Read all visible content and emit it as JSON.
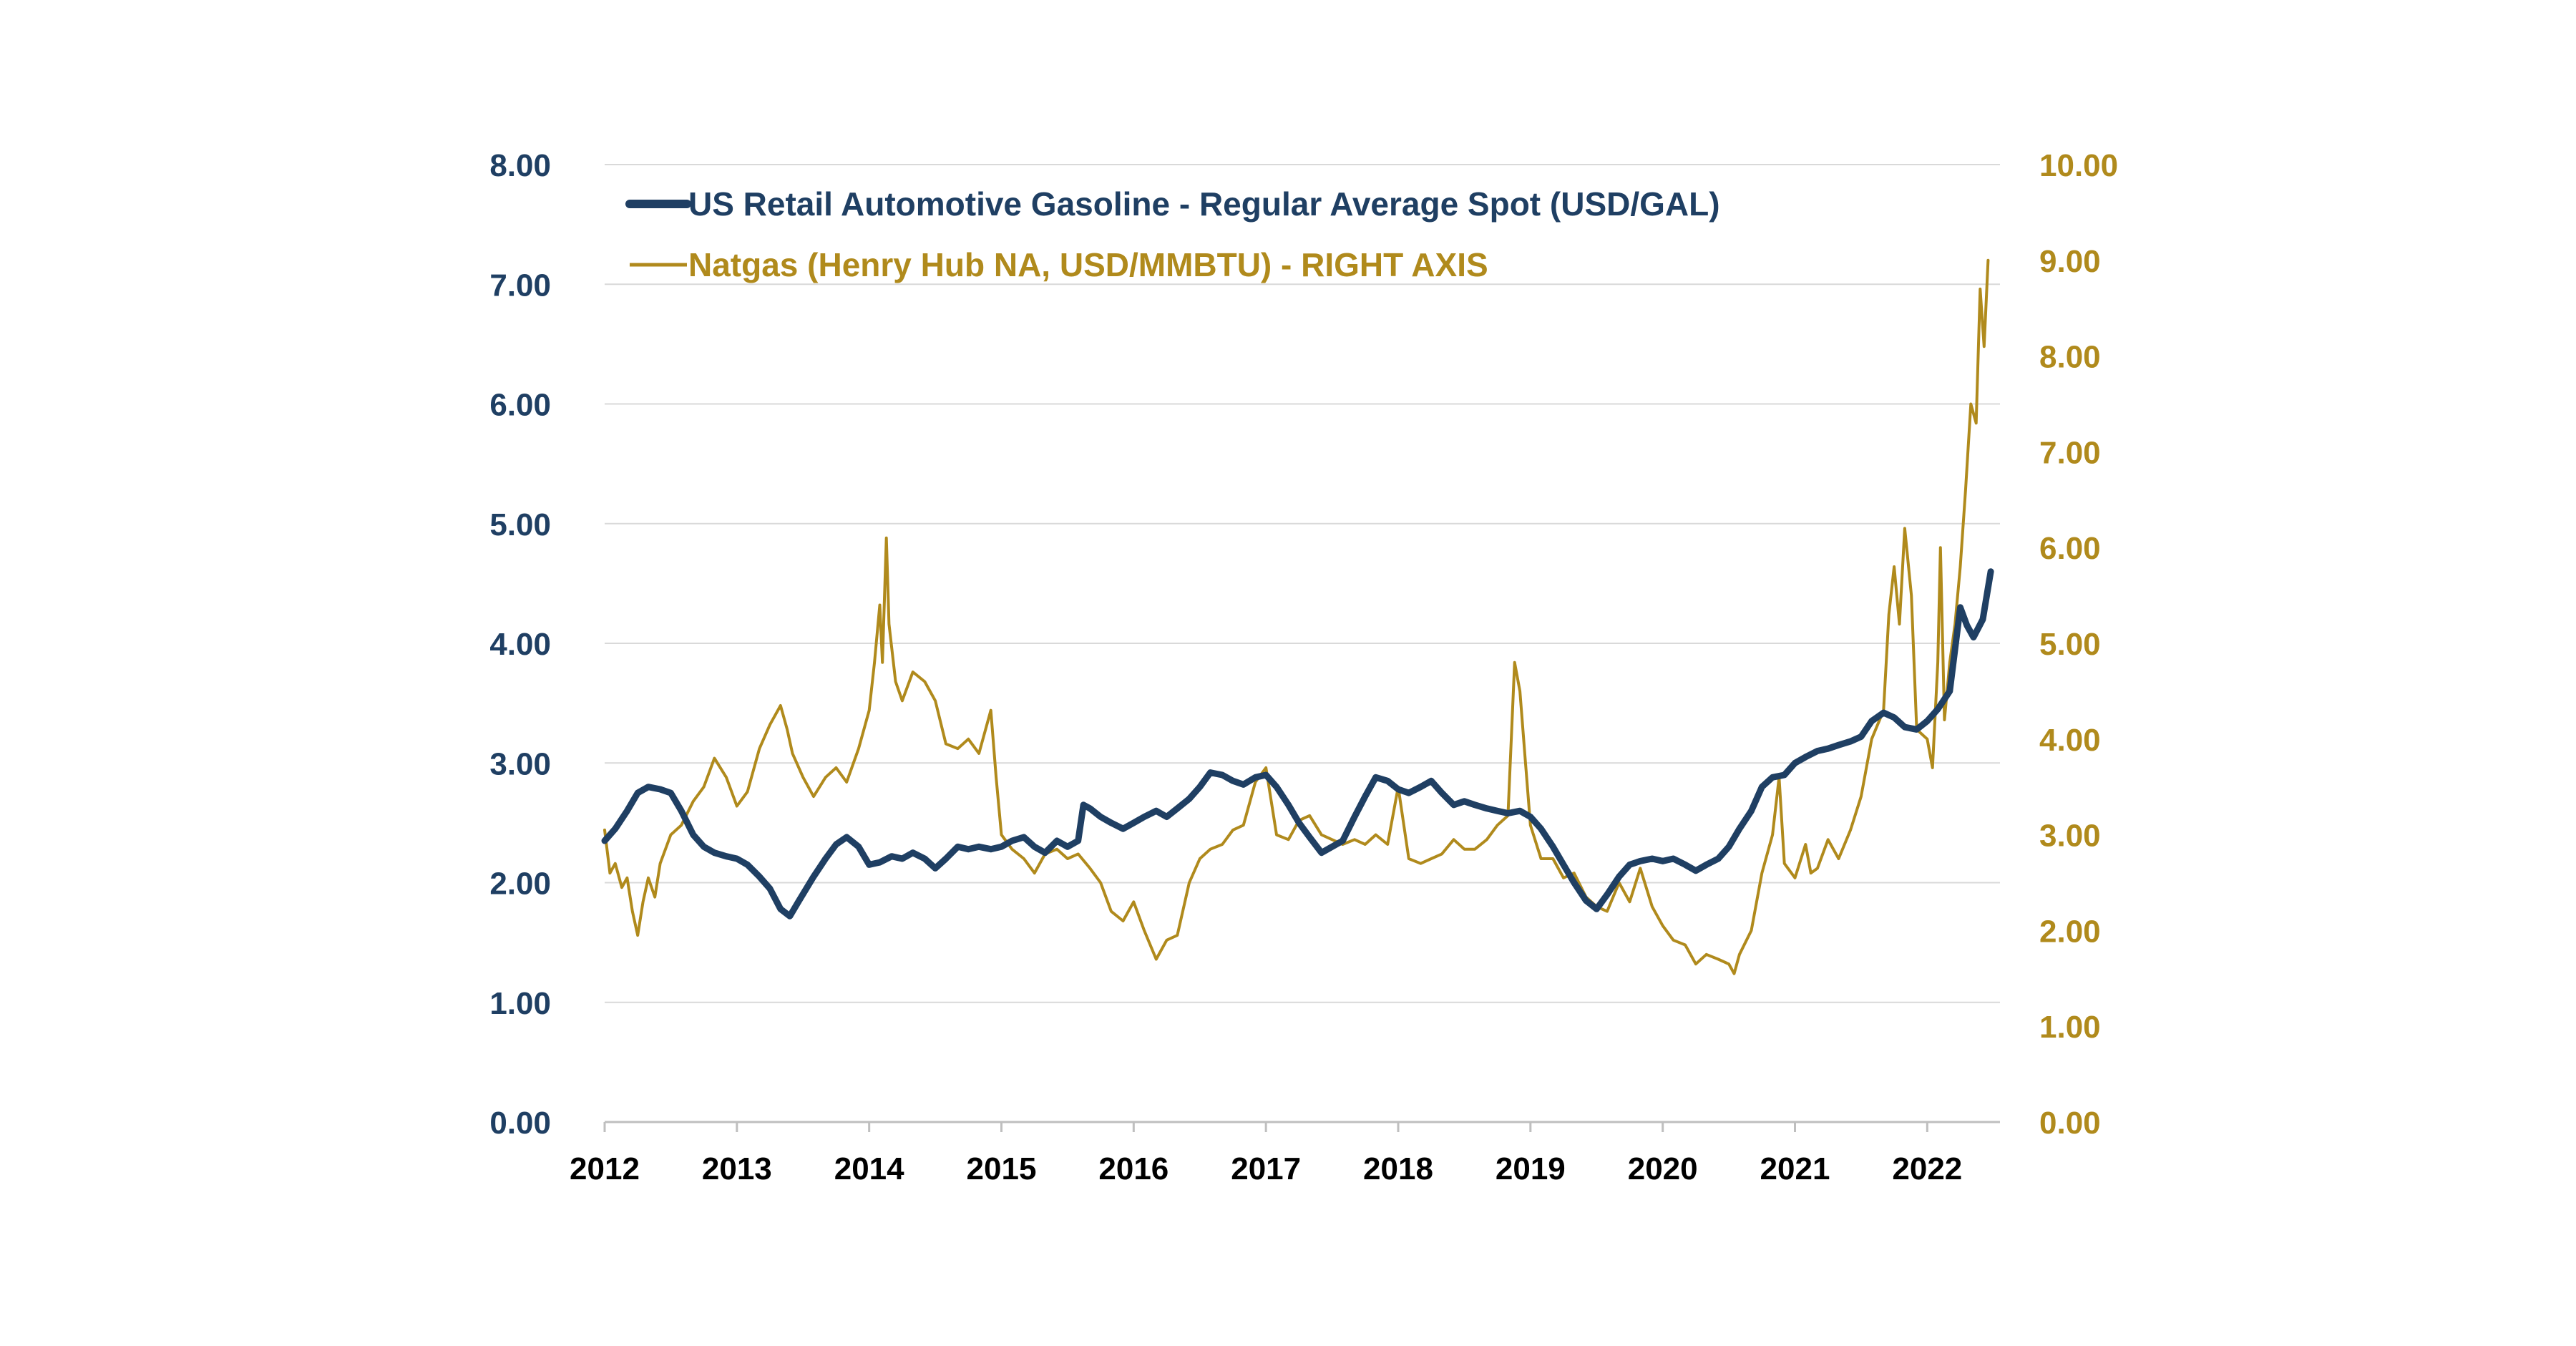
{
  "chart_data": {
    "type": "line",
    "title": "",
    "xlabel": "",
    "ylabel_left": "",
    "ylabel_right": "",
    "x_range": [
      2012,
      2022.55
    ],
    "y_left_range": [
      0,
      8
    ],
    "y_right_range": [
      0,
      10
    ],
    "grid": "horizontal",
    "legend_position": "top-left",
    "x_ticks": [
      "2012",
      "2013",
      "2014",
      "2015",
      "2016",
      "2017",
      "2018",
      "2019",
      "2020",
      "2021",
      "2022"
    ],
    "y_left_ticks": [
      "0.00",
      "1.00",
      "2.00",
      "3.00",
      "4.00",
      "5.00",
      "6.00",
      "7.00",
      "8.00"
    ],
    "y_right_ticks": [
      "0.00",
      "1.00",
      "2.00",
      "3.00",
      "4.00",
      "5.00",
      "6.00",
      "7.00",
      "8.00",
      "9.00",
      "10.00"
    ],
    "series": [
      {
        "name": "US Retail Automotive Gasoline - Regular Average Spot (USD/GAL)",
        "axis": "left",
        "color": "#1f3f63",
        "points": [
          [
            2012.0,
            2.35
          ],
          [
            2012.08,
            2.45
          ],
          [
            2012.17,
            2.6
          ],
          [
            2012.25,
            2.75
          ],
          [
            2012.33,
            2.8
          ],
          [
            2012.42,
            2.78
          ],
          [
            2012.5,
            2.75
          ],
          [
            2012.58,
            2.6
          ],
          [
            2012.67,
            2.4
          ],
          [
            2012.75,
            2.3
          ],
          [
            2012.83,
            2.25
          ],
          [
            2012.92,
            2.22
          ],
          [
            2013.0,
            2.2
          ],
          [
            2013.08,
            2.15
          ],
          [
            2013.17,
            2.05
          ],
          [
            2013.25,
            1.95
          ],
          [
            2013.33,
            1.78
          ],
          [
            2013.4,
            1.72
          ],
          [
            2013.47,
            1.85
          ],
          [
            2013.58,
            2.05
          ],
          [
            2013.67,
            2.2
          ],
          [
            2013.75,
            2.32
          ],
          [
            2013.83,
            2.38
          ],
          [
            2013.92,
            2.3
          ],
          [
            2014.0,
            2.15
          ],
          [
            2014.08,
            2.17
          ],
          [
            2014.17,
            2.22
          ],
          [
            2014.25,
            2.2
          ],
          [
            2014.33,
            2.25
          ],
          [
            2014.42,
            2.2
          ],
          [
            2014.5,
            2.12
          ],
          [
            2014.58,
            2.2
          ],
          [
            2014.67,
            2.3
          ],
          [
            2014.75,
            2.28
          ],
          [
            2014.83,
            2.3
          ],
          [
            2014.92,
            2.28
          ],
          [
            2015.0,
            2.3
          ],
          [
            2015.08,
            2.35
          ],
          [
            2015.17,
            2.38
          ],
          [
            2015.25,
            2.3
          ],
          [
            2015.33,
            2.25
          ],
          [
            2015.42,
            2.35
          ],
          [
            2015.5,
            2.3
          ],
          [
            2015.58,
            2.35
          ],
          [
            2015.62,
            2.65
          ],
          [
            2015.67,
            2.62
          ],
          [
            2015.75,
            2.55
          ],
          [
            2015.83,
            2.5
          ],
          [
            2015.92,
            2.45
          ],
          [
            2016.0,
            2.5
          ],
          [
            2016.08,
            2.55
          ],
          [
            2016.17,
            2.6
          ],
          [
            2016.25,
            2.55
          ],
          [
            2016.33,
            2.62
          ],
          [
            2016.42,
            2.7
          ],
          [
            2016.5,
            2.8
          ],
          [
            2016.58,
            2.92
          ],
          [
            2016.67,
            2.9
          ],
          [
            2016.75,
            2.85
          ],
          [
            2016.83,
            2.82
          ],
          [
            2016.92,
            2.88
          ],
          [
            2017.0,
            2.9
          ],
          [
            2017.08,
            2.8
          ],
          [
            2017.17,
            2.65
          ],
          [
            2017.25,
            2.5
          ],
          [
            2017.33,
            2.38
          ],
          [
            2017.42,
            2.25
          ],
          [
            2017.5,
            2.3
          ],
          [
            2017.58,
            2.35
          ],
          [
            2017.67,
            2.55
          ],
          [
            2017.75,
            2.72
          ],
          [
            2017.83,
            2.88
          ],
          [
            2017.92,
            2.85
          ],
          [
            2018.0,
            2.78
          ],
          [
            2018.08,
            2.75
          ],
          [
            2018.17,
            2.8
          ],
          [
            2018.25,
            2.85
          ],
          [
            2018.33,
            2.75
          ],
          [
            2018.42,
            2.65
          ],
          [
            2018.5,
            2.68
          ],
          [
            2018.58,
            2.65
          ],
          [
            2018.67,
            2.62
          ],
          [
            2018.75,
            2.6
          ],
          [
            2018.83,
            2.58
          ],
          [
            2018.92,
            2.6
          ],
          [
            2019.0,
            2.55
          ],
          [
            2019.08,
            2.45
          ],
          [
            2019.17,
            2.3
          ],
          [
            2019.25,
            2.15
          ],
          [
            2019.33,
            2.0
          ],
          [
            2019.42,
            1.85
          ],
          [
            2019.5,
            1.78
          ],
          [
            2019.58,
            1.9
          ],
          [
            2019.67,
            2.05
          ],
          [
            2019.75,
            2.15
          ],
          [
            2019.83,
            2.18
          ],
          [
            2019.92,
            2.2
          ],
          [
            2020.0,
            2.18
          ],
          [
            2020.08,
            2.2
          ],
          [
            2020.17,
            2.15
          ],
          [
            2020.25,
            2.1
          ],
          [
            2020.33,
            2.15
          ],
          [
            2020.42,
            2.2
          ],
          [
            2020.5,
            2.3
          ],
          [
            2020.58,
            2.45
          ],
          [
            2020.67,
            2.6
          ],
          [
            2020.75,
            2.8
          ],
          [
            2020.83,
            2.88
          ],
          [
            2020.92,
            2.9
          ],
          [
            2021.0,
            3.0
          ],
          [
            2021.08,
            3.05
          ],
          [
            2021.17,
            3.1
          ],
          [
            2021.25,
            3.12
          ],
          [
            2021.33,
            3.15
          ],
          [
            2021.42,
            3.18
          ],
          [
            2021.5,
            3.22
          ],
          [
            2021.58,
            3.35
          ],
          [
            2021.67,
            3.42
          ],
          [
            2021.75,
            3.38
          ],
          [
            2021.83,
            3.3
          ],
          [
            2021.92,
            3.28
          ],
          [
            2022.0,
            3.35
          ],
          [
            2022.08,
            3.45
          ],
          [
            2022.17,
            3.6
          ],
          [
            2022.25,
            4.3
          ],
          [
            2022.3,
            4.15
          ],
          [
            2022.35,
            4.05
          ],
          [
            2022.42,
            4.2
          ],
          [
            2022.48,
            4.6
          ]
        ]
      },
      {
        "name": "Natgas (Henry Hub NA, USD/MMBTU) - RIGHT AXIS",
        "axis": "right",
        "color": "#b08a1c",
        "points": [
          [
            2012.0,
            3.05
          ],
          [
            2012.04,
            2.6
          ],
          [
            2012.08,
            2.7
          ],
          [
            2012.13,
            2.45
          ],
          [
            2012.17,
            2.55
          ],
          [
            2012.21,
            2.2
          ],
          [
            2012.25,
            1.95
          ],
          [
            2012.29,
            2.3
          ],
          [
            2012.33,
            2.55
          ],
          [
            2012.38,
            2.35
          ],
          [
            2012.42,
            2.7
          ],
          [
            2012.46,
            2.85
          ],
          [
            2012.5,
            3.0
          ],
          [
            2012.58,
            3.1
          ],
          [
            2012.67,
            3.35
          ],
          [
            2012.75,
            3.5
          ],
          [
            2012.83,
            3.8
          ],
          [
            2012.92,
            3.6
          ],
          [
            2013.0,
            3.3
          ],
          [
            2013.08,
            3.45
          ],
          [
            2013.17,
            3.9
          ],
          [
            2013.25,
            4.15
          ],
          [
            2013.33,
            4.35
          ],
          [
            2013.38,
            4.1
          ],
          [
            2013.42,
            3.85
          ],
          [
            2013.5,
            3.6
          ],
          [
            2013.58,
            3.4
          ],
          [
            2013.67,
            3.6
          ],
          [
            2013.75,
            3.7
          ],
          [
            2013.83,
            3.55
          ],
          [
            2013.92,
            3.9
          ],
          [
            2014.0,
            4.3
          ],
          [
            2014.04,
            4.8
          ],
          [
            2014.08,
            5.4
          ],
          [
            2014.1,
            4.8
          ],
          [
            2014.13,
            6.1
          ],
          [
            2014.15,
            5.2
          ],
          [
            2014.2,
            4.6
          ],
          [
            2014.25,
            4.4
          ],
          [
            2014.33,
            4.7
          ],
          [
            2014.42,
            4.6
          ],
          [
            2014.5,
            4.4
          ],
          [
            2014.58,
            3.95
          ],
          [
            2014.67,
            3.9
          ],
          [
            2014.75,
            4.0
          ],
          [
            2014.83,
            3.85
          ],
          [
            2014.92,
            4.3
          ],
          [
            2014.96,
            3.6
          ],
          [
            2015.0,
            3.0
          ],
          [
            2015.08,
            2.85
          ],
          [
            2015.17,
            2.75
          ],
          [
            2015.25,
            2.6
          ],
          [
            2015.33,
            2.8
          ],
          [
            2015.42,
            2.85
          ],
          [
            2015.5,
            2.75
          ],
          [
            2015.58,
            2.8
          ],
          [
            2015.67,
            2.65
          ],
          [
            2015.75,
            2.5
          ],
          [
            2015.83,
            2.2
          ],
          [
            2015.92,
            2.1
          ],
          [
            2016.0,
            2.3
          ],
          [
            2016.08,
            2.0
          ],
          [
            2016.17,
            1.7
          ],
          [
            2016.25,
            1.9
          ],
          [
            2016.33,
            1.95
          ],
          [
            2016.42,
            2.5
          ],
          [
            2016.5,
            2.75
          ],
          [
            2016.58,
            2.85
          ],
          [
            2016.67,
            2.9
          ],
          [
            2016.75,
            3.05
          ],
          [
            2016.83,
            3.1
          ],
          [
            2016.92,
            3.55
          ],
          [
            2017.0,
            3.7
          ],
          [
            2017.08,
            3.0
          ],
          [
            2017.17,
            2.95
          ],
          [
            2017.25,
            3.15
          ],
          [
            2017.33,
            3.2
          ],
          [
            2017.42,
            3.0
          ],
          [
            2017.5,
            2.95
          ],
          [
            2017.58,
            2.9
          ],
          [
            2017.67,
            2.95
          ],
          [
            2017.75,
            2.9
          ],
          [
            2017.83,
            3.0
          ],
          [
            2017.92,
            2.9
          ],
          [
            2018.0,
            3.5
          ],
          [
            2018.08,
            2.75
          ],
          [
            2018.17,
            2.7
          ],
          [
            2018.25,
            2.75
          ],
          [
            2018.33,
            2.8
          ],
          [
            2018.42,
            2.95
          ],
          [
            2018.5,
            2.85
          ],
          [
            2018.58,
            2.85
          ],
          [
            2018.67,
            2.95
          ],
          [
            2018.75,
            3.1
          ],
          [
            2018.83,
            3.2
          ],
          [
            2018.88,
            4.8
          ],
          [
            2018.92,
            4.5
          ],
          [
            2018.96,
            3.8
          ],
          [
            2019.0,
            3.1
          ],
          [
            2019.08,
            2.75
          ],
          [
            2019.17,
            2.75
          ],
          [
            2019.25,
            2.55
          ],
          [
            2019.33,
            2.6
          ],
          [
            2019.42,
            2.35
          ],
          [
            2019.5,
            2.25
          ],
          [
            2019.58,
            2.2
          ],
          [
            2019.67,
            2.5
          ],
          [
            2019.75,
            2.3
          ],
          [
            2019.83,
            2.65
          ],
          [
            2019.92,
            2.25
          ],
          [
            2020.0,
            2.05
          ],
          [
            2020.08,
            1.9
          ],
          [
            2020.17,
            1.85
          ],
          [
            2020.25,
            1.65
          ],
          [
            2020.33,
            1.75
          ],
          [
            2020.42,
            1.7
          ],
          [
            2020.5,
            1.65
          ],
          [
            2020.54,
            1.55
          ],
          [
            2020.58,
            1.75
          ],
          [
            2020.67,
            2.0
          ],
          [
            2020.75,
            2.6
          ],
          [
            2020.83,
            3.0
          ],
          [
            2020.88,
            3.6
          ],
          [
            2020.92,
            2.7
          ],
          [
            2021.0,
            2.55
          ],
          [
            2021.08,
            2.9
          ],
          [
            2021.12,
            2.6
          ],
          [
            2021.17,
            2.65
          ],
          [
            2021.25,
            2.95
          ],
          [
            2021.33,
            2.75
          ],
          [
            2021.42,
            3.05
          ],
          [
            2021.5,
            3.4
          ],
          [
            2021.58,
            4.0
          ],
          [
            2021.67,
            4.3
          ],
          [
            2021.71,
            5.3
          ],
          [
            2021.75,
            5.8
          ],
          [
            2021.79,
            5.2
          ],
          [
            2021.83,
            6.2
          ],
          [
            2021.88,
            5.5
          ],
          [
            2021.92,
            4.1
          ],
          [
            2022.0,
            4.0
          ],
          [
            2022.04,
            3.7
          ],
          [
            2022.08,
            4.8
          ],
          [
            2022.1,
            6.0
          ],
          [
            2022.13,
            4.2
          ],
          [
            2022.17,
            4.8
          ],
          [
            2022.21,
            5.2
          ],
          [
            2022.25,
            5.8
          ],
          [
            2022.29,
            6.6
          ],
          [
            2022.33,
            7.5
          ],
          [
            2022.37,
            7.3
          ],
          [
            2022.4,
            8.7
          ],
          [
            2022.43,
            8.1
          ],
          [
            2022.46,
            9.0
          ]
        ]
      }
    ]
  },
  "legend": {
    "gasoline_label": "US Retail Automotive Gasoline - Regular Average Spot (USD/GAL)",
    "natgas_label": "Natgas (Henry Hub NA, USD/MMBTU) - RIGHT AXIS"
  },
  "colors": {
    "gasoline": "#1f3f63",
    "natgas": "#b08a1c",
    "grid": "#d9d9d9",
    "axis": "#bfbfbf"
  }
}
